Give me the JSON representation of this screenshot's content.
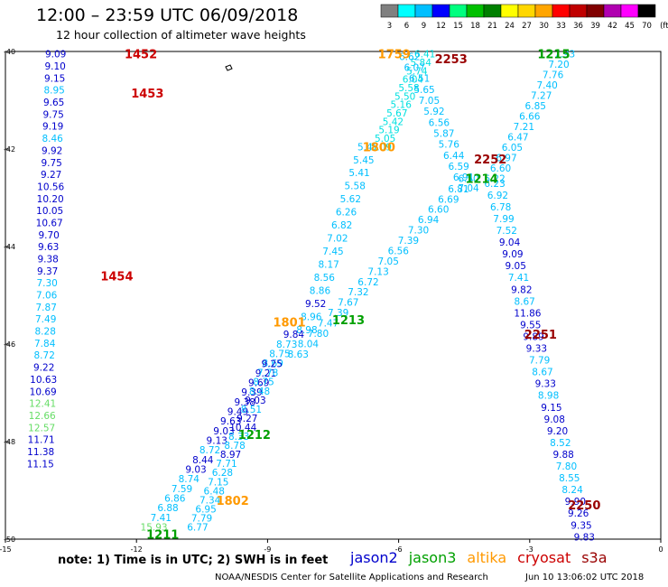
{
  "header": {
    "title": "12:00 – 23:59 UTC 06/09/2018",
    "subtitle": "12 hour collection of altimeter wave heights"
  },
  "colorbar": {
    "ticks": [
      "3",
      "6",
      "9",
      "12",
      "15",
      "18",
      "21",
      "24",
      "27",
      "30",
      "33",
      "36",
      "39",
      "42",
      "45",
      "70",
      "(ft)"
    ],
    "colors": [
      "#808080",
      "#00ffff",
      "#00bfff",
      "#0000ff",
      "#00ff7f",
      "#00c000",
      "#008000",
      "#ffff00",
      "#ffd700",
      "#ffa500",
      "#ff0000",
      "#c00000",
      "#800000",
      "#b000b0",
      "#ff00ff",
      "#000000"
    ]
  },
  "footer": {
    "note": "note:  1) Time is in UTC;  2) SWH is in feet",
    "sources": [
      {
        "name": "jason2",
        "color": "#0000cc"
      },
      {
        "name": "jason3",
        "color": "#00a000"
      },
      {
        "name": "altika",
        "color": "#ff9900"
      },
      {
        "name": "cryosat",
        "color": "#cc0000"
      },
      {
        "name": "s3a",
        "color": "#990000"
      }
    ],
    "credit": "NOAA/NESDIS Center for Satellite Applications and Research",
    "timestamp": "Jun 10 13:06:02 UTC 2018"
  },
  "chart_data": {
    "type": "scatter",
    "title": "12:00 – 23:59 UTC 06/09/2018",
    "subtitle": "12 hour collection of altimeter wave heights",
    "xlim": [
      -15,
      0
    ],
    "ylim": [
      -50,
      -40
    ],
    "xticks": [
      "-15",
      "-12",
      "-9",
      "-6",
      "-3",
      "0"
    ],
    "yticks": [
      "-40",
      "-42",
      "-44",
      "-46",
      "-48",
      "-50"
    ],
    "units": "ft",
    "passes": [
      {
        "label": "1452",
        "satellite": "cryosat",
        "label_color": "#cc0000",
        "label_pos": [
          -11.9,
          -40.05
        ]
      },
      {
        "label": "1453",
        "satellite": "cryosat",
        "label_color": "#cc0000",
        "label_pos": [
          -11.75,
          -40.85
        ]
      },
      {
        "label": "1454",
        "satellite": "cryosat",
        "label_color": "#cc0000",
        "label_pos": [
          -12.45,
          -44.6
        ]
      },
      {
        "label": "1759",
        "satellite": "altika",
        "label_color": "#ff9900",
        "label_pos": [
          -6.1,
          -40.05
        ]
      },
      {
        "label": "1800",
        "satellite": "altika",
        "label_color": "#ff9900",
        "label_pos": [
          -6.45,
          -41.95
        ]
      },
      {
        "label": "1801",
        "satellite": "altika",
        "label_color": "#ff9900",
        "label_pos": [
          -8.5,
          -45.55
        ]
      },
      {
        "label": "1802",
        "satellite": "altika",
        "label_color": "#ff9900",
        "label_pos": [
          -9.8,
          -49.2
        ]
      },
      {
        "label": "2253",
        "satellite": "s3a",
        "label_color": "#990000",
        "label_pos": [
          -4.8,
          -40.15
        ]
      },
      {
        "label": "2252",
        "satellite": "s3a",
        "label_color": "#990000",
        "label_pos": [
          -3.9,
          -42.2
        ]
      },
      {
        "label": "2251",
        "satellite": "s3a",
        "label_color": "#990000",
        "label_pos": [
          -2.75,
          -45.8
        ]
      },
      {
        "label": "2250",
        "satellite": "s3a",
        "label_color": "#990000",
        "label_pos": [
          -1.75,
          -49.3
        ]
      },
      {
        "label": "1215",
        "satellite": "jason3",
        "label_color": "#00a000",
        "label_pos": [
          -2.45,
          -40.05
        ]
      },
      {
        "label": "1214",
        "satellite": "jason3",
        "label_color": "#00a000",
        "label_pos": [
          -4.1,
          -42.6
        ]
      },
      {
        "label": "1213",
        "satellite": "jason3",
        "label_color": "#00a000",
        "label_pos": [
          -7.15,
          -45.5
        ]
      },
      {
        "label": "1212",
        "satellite": "jason3",
        "label_color": "#00a000",
        "label_pos": [
          -9.3,
          -47.85
        ]
      },
      {
        "label": "1211",
        "satellite": "jason3",
        "label_color": "#00a000",
        "label_pos": [
          -11.4,
          -49.9
        ]
      }
    ],
    "tracks": [
      {
        "name": "cryosat-1452-1454",
        "start": [
          -13.85,
          -40.05
        ],
        "end": [
          -14.2,
          -48.45
        ],
        "values": [
          "9.09",
          "9.10",
          "9.15",
          "8.95",
          "9.65",
          "9.75",
          "9.19",
          "8.46",
          "9.92",
          "9.75",
          "9.27",
          "10.56",
          "10.20",
          "10.05",
          "10.67",
          "9.70",
          "9.63",
          "9.38",
          "9.37",
          "7.30",
          "7.06",
          "7.87",
          "7.49",
          "8.28",
          "7.84",
          "8.72",
          "9.22",
          "10.63",
          "10.69",
          "12.41",
          "12.66",
          "12.57",
          "11.71",
          "11.38",
          "11.15"
        ],
        "colors": [
          "#0000cc",
          "#0000cc",
          "#0000cc",
          "#00bfff",
          "#0000cc",
          "#0000cc",
          "#0000cc",
          "#00bfff",
          "#0000cc",
          "#0000cc",
          "#0000cc",
          "#0000cc",
          "#0000cc",
          "#0000cc",
          "#0000cc",
          "#0000cc",
          "#0000cc",
          "#0000cc",
          "#0000cc",
          "#00bfff",
          "#00bfff",
          "#00bfff",
          "#00bfff",
          "#00bfff",
          "#00bfff",
          "#00bfff",
          "#0000cc",
          "#0000cc",
          "#0000cc",
          "#66dd66",
          "#66dd66",
          "#66dd66",
          "#0000cc",
          "#0000cc",
          "#0000cc"
        ]
      },
      {
        "name": "altika-descending",
        "start": [
          -5.4,
          -40.05
        ],
        "end": [
          -6.4,
          -41.95
        ],
        "values": [
          "6.41",
          "5.84",
          "5.74",
          "6.04",
          "5.58",
          "5.50",
          "5.16",
          "5.67",
          "5.42",
          "5.19",
          "5.05",
          "5.09"
        ],
        "colors": [
          "#00e0e0",
          "#00e0e0",
          "#00e0e0",
          "#00e0e0",
          "#00e0e0",
          "#00e0e0",
          "#00e0e0",
          "#00e0e0",
          "#00e0e0",
          "#00e0e0",
          "#00e0e0",
          "#00e0e0"
        ]
      },
      {
        "name": "jason3-1215-1214",
        "start": [
          -2.2,
          -40.05
        ],
        "end": [
          -3.8,
          -42.6
        ],
        "values": [
          "7.93",
          "7.20",
          "7.76",
          "7.40",
          "7.27",
          "6.85",
          "6.66",
          "7.21",
          "6.47",
          "6.05",
          "6.97",
          "6.60",
          "6.22"
        ],
        "colors": [
          "#00bfff",
          "#00bfff",
          "#00bfff",
          "#00bfff",
          "#00bfff",
          "#00bfff",
          "#00bfff",
          "#00bfff",
          "#00bfff",
          "#00bfff",
          "#00bfff",
          "#00bfff",
          "#00bfff"
        ]
      },
      {
        "name": "s3a-2253-2252",
        "start": [
          -5.75,
          -40.1
        ],
        "end": [
          -4.4,
          -42.8
        ],
        "values": [
          "6.62",
          "6.07",
          "6.51",
          "5.65",
          "7.05",
          "5.92",
          "6.56",
          "5.87",
          "5.76",
          "6.44",
          "6.59",
          "6.91",
          "7.04"
        ],
        "colors": [
          "#00bfff",
          "#00bfff",
          "#00bfff",
          "#00bfff",
          "#00bfff",
          "#00bfff",
          "#00bfff",
          "#00bfff",
          "#00bfff",
          "#00bfff",
          "#00bfff",
          "#00bfff",
          "#00bfff"
        ]
      },
      {
        "name": "altika-1800-1801",
        "start": [
          -6.7,
          -41.95
        ],
        "end": [
          -8.1,
          -45.7
        ],
        "values": [
          "5.45",
          "5.45",
          "5.41",
          "5.58",
          "5.62",
          "6.26",
          "6.82",
          "7.02",
          "7.45",
          "8.17",
          "8.56",
          "8.86",
          "9.52",
          "8.96",
          "8.98"
        ],
        "colors": [
          "#00bfff",
          "#00bfff",
          "#00bfff",
          "#00bfff",
          "#00bfff",
          "#00bfff",
          "#00bfff",
          "#00bfff",
          "#00bfff",
          "#00bfff",
          "#00bfff",
          "#00bfff",
          "#0000cc",
          "#00bfff",
          "#00bfff"
        ]
      },
      {
        "name": "jason3-1214-1213",
        "start": [
          -4.4,
          -42.6
        ],
        "end": [
          -8.3,
          -46.2
        ],
        "values": [
          "6.50",
          "6.81",
          "6.69",
          "6.60",
          "6.94",
          "7.30",
          "7.39",
          "6.56",
          "7.05",
          "7.13",
          "6.72",
          "7.32",
          "7.67",
          "7.39",
          "7.47",
          "7.80",
          "8.04",
          "8.63"
        ],
        "colors": [
          "#00bfff",
          "#00bfff",
          "#00bfff",
          "#00bfff",
          "#00bfff",
          "#00bfff",
          "#00bfff",
          "#00bfff",
          "#00bfff",
          "#00bfff",
          "#00bfff",
          "#00bfff",
          "#00bfff",
          "#00bfff",
          "#00bfff",
          "#00bfff",
          "#00bfff",
          "#00bfff"
        ]
      },
      {
        "name": "s3a-2252-2250",
        "start": [
          -3.8,
          -42.7
        ],
        "end": [
          -1.75,
          -49.95
        ],
        "values": [
          "6.23",
          "6.92",
          "6.78",
          "7.99",
          "7.52",
          "9.04",
          "9.09",
          "9.05",
          "7.41",
          "9.82",
          "8.67",
          "11.86",
          "9.55",
          "9.89",
          "9.33",
          "7.79",
          "8.67",
          "9.33",
          "8.98",
          "9.15",
          "9.08",
          "9.20",
          "8.52",
          "9.88",
          "7.80",
          "8.55",
          "8.24",
          "9.90",
          "9.26",
          "9.35",
          "9.83"
        ],
        "colors": [
          "#00bfff",
          "#00bfff",
          "#00bfff",
          "#00bfff",
          "#00bfff",
          "#0000cc",
          "#0000cc",
          "#0000cc",
          "#00bfff",
          "#0000cc",
          "#00bfff",
          "#0000cc",
          "#0000cc",
          "#0000cc",
          "#0000cc",
          "#00bfff",
          "#00bfff",
          "#0000cc",
          "#00bfff",
          "#0000cc",
          "#0000cc",
          "#0000cc",
          "#00bfff",
          "#0000cc",
          "#00bfff",
          "#00bfff",
          "#00bfff",
          "#0000cc",
          "#0000cc",
          "#0000cc",
          "#0000cc"
        ]
      },
      {
        "name": "altika-1801-1802",
        "start": [
          -8.4,
          -45.8
        ],
        "end": [
          -11.6,
          -49.75
        ],
        "values": [
          "9.84",
          "8.73",
          "8.75",
          "8.69",
          "9.21",
          "9.69",
          "9.39",
          "9.38",
          "9.49",
          "9.63",
          "9.03",
          "9.13",
          "8.72",
          "8.44",
          "9.03",
          "8.74",
          "7.59",
          "6.86",
          "6.88",
          "7.41",
          "15.93"
        ],
        "colors": [
          "#0000cc",
          "#00bfff",
          "#00bfff",
          "#00bfff",
          "#0000cc",
          "#0000cc",
          "#0000cc",
          "#0000cc",
          "#0000cc",
          "#0000cc",
          "#0000cc",
          "#0000cc",
          "#00bfff",
          "#0000cc",
          "#0000cc",
          "#00bfff",
          "#00bfff",
          "#00bfff",
          "#00bfff",
          "#00bfff",
          "#66dd66"
        ]
      },
      {
        "name": "jason3-1213-1211",
        "start": [
          -8.9,
          -46.4
        ],
        "end": [
          -10.6,
          -49.75
        ],
        "values": [
          "9.25",
          "7.78",
          "8.75",
          "8.48",
          "9.03",
          "8.51",
          "9.27",
          "10.44",
          "8.33",
          "8.78",
          "8.97",
          "7.71",
          "6.28",
          "7.15",
          "6.48",
          "7.34",
          "6.95",
          "7.79",
          "6.77"
        ],
        "colors": [
          "#0000cc",
          "#00bfff",
          "#00bfff",
          "#00bfff",
          "#0000cc",
          "#00bfff",
          "#0000cc",
          "#0000cc",
          "#00bfff",
          "#00bfff",
          "#0000cc",
          "#00bfff",
          "#00bfff",
          "#00bfff",
          "#00bfff",
          "#00bfff",
          "#00bfff",
          "#00bfff",
          "#00bfff"
        ]
      }
    ]
  }
}
